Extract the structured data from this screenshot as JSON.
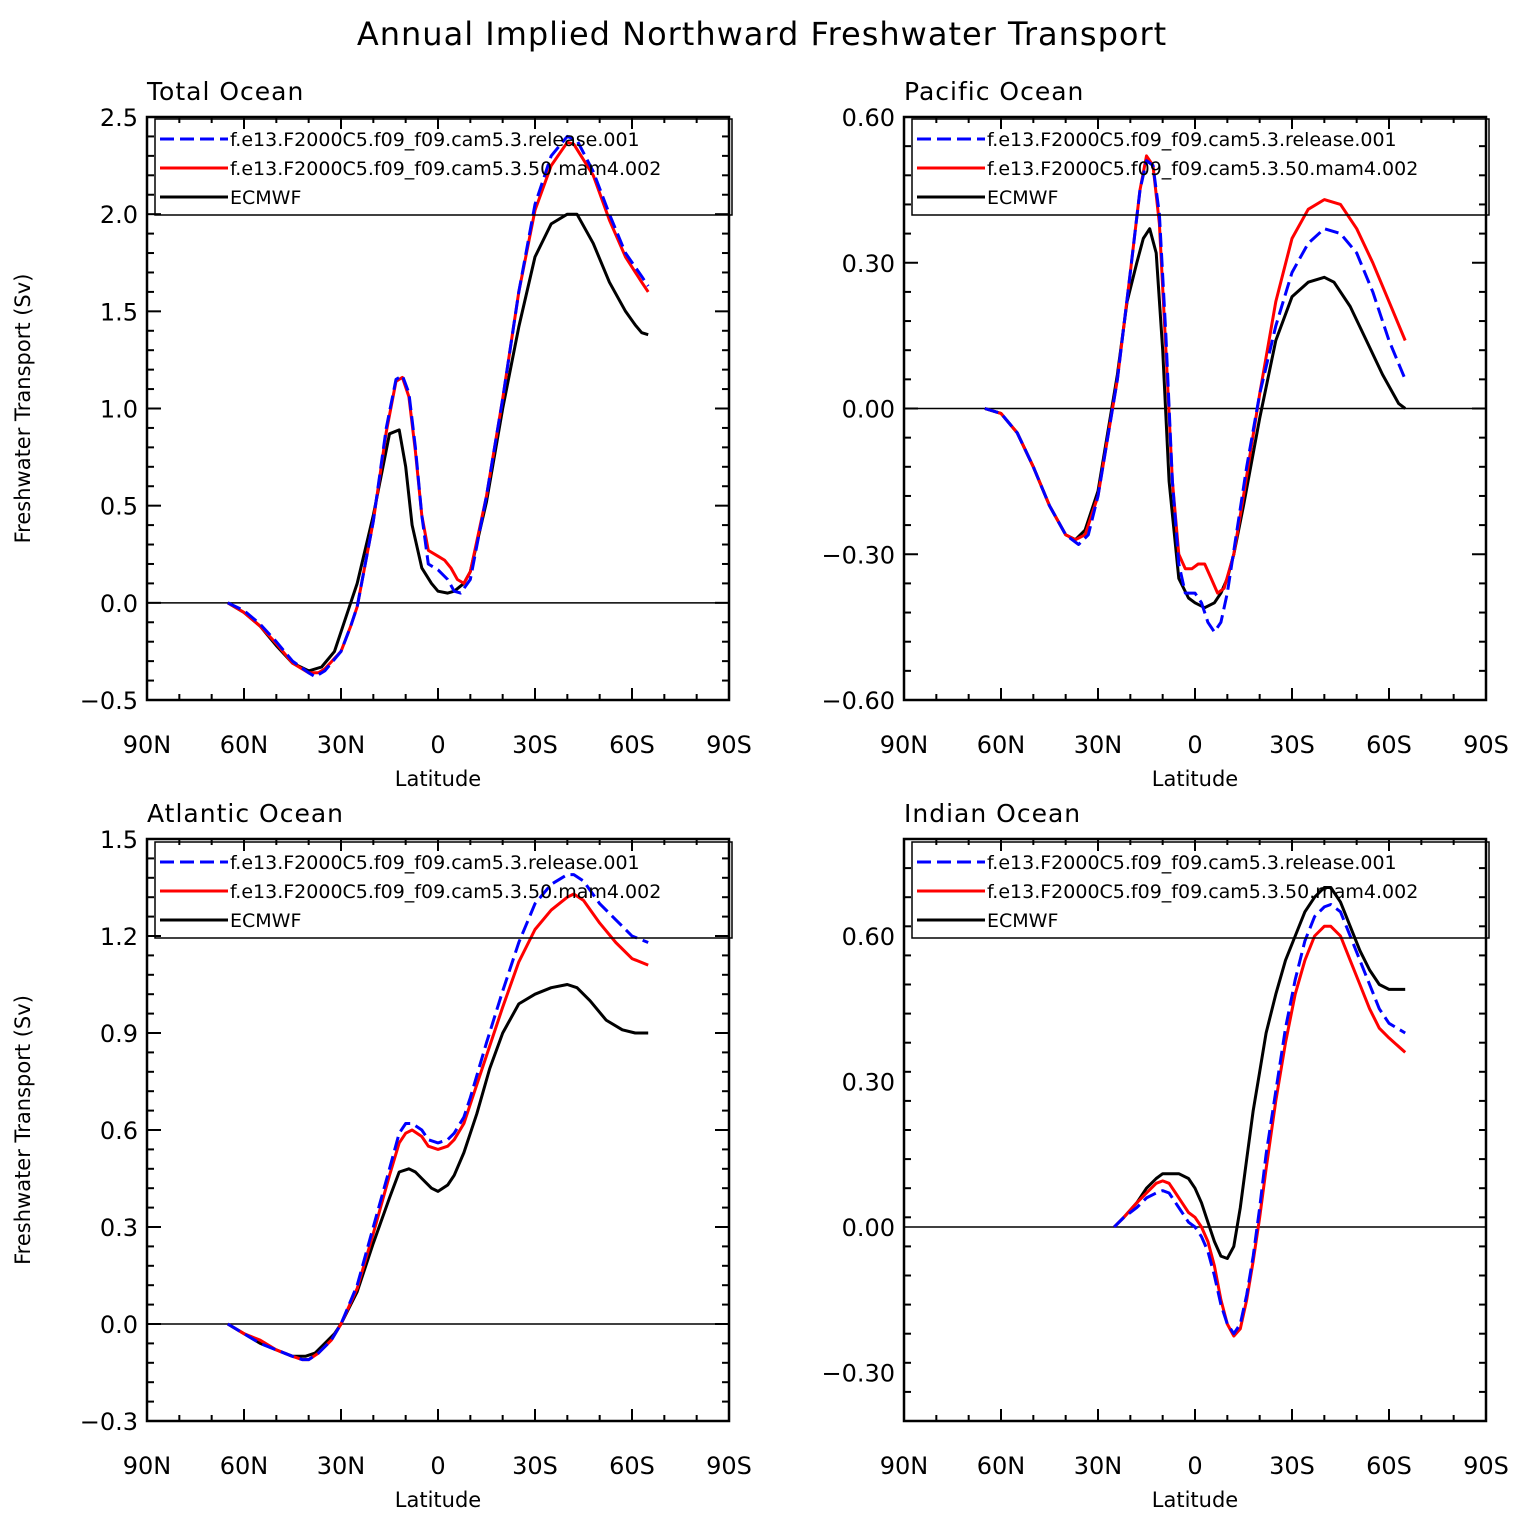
{
  "title": "Annual Implied Northward Freshwater Transport",
  "series_styles": [
    {
      "name": "f.e13.F2000C5.f09_f09.cam5.3.release.001",
      "color": "#0000ff",
      "dash": "dashed"
    },
    {
      "name": "f.e13.F2000C5.f09_f09.cam5.3.50.mam4.002",
      "color": "#ff0000",
      "dash": "solid"
    },
    {
      "name": "ECMWF",
      "color": "#000000",
      "dash": "solid"
    }
  ],
  "chart_data": [
    {
      "type": "line",
      "title": "Total Ocean",
      "xlabel": "Latitude",
      "ylabel": "Freshwater Transport (Sv)",
      "xlim": [
        -90,
        90
      ],
      "ylim": [
        -0.5,
        2.5
      ],
      "x_ticks": [
        -90,
        -60,
        -30,
        0,
        30,
        60,
        90
      ],
      "x_tick_labels": [
        "90N",
        "60N",
        "30N",
        "0",
        "30S",
        "60S",
        "90S"
      ],
      "y_ticks": [
        -0.5,
        0.0,
        0.5,
        1.0,
        1.5,
        2.0,
        2.5
      ],
      "y_tick_labels": [
        "−0.5",
        "0.0",
        "0.5",
        "1.0",
        "1.5",
        "2.0",
        "2.5"
      ],
      "legend": "top",
      "series": [
        {
          "name": "f.e13.F2000C5.f09_f09.cam5.3.release.001",
          "x": [
            -65,
            -60,
            -55,
            -50,
            -45,
            -40,
            -38,
            -35,
            -30,
            -27,
            -25,
            -20,
            -16,
            -13,
            -11,
            -9,
            -7,
            -5,
            -3,
            0,
            3,
            5,
            7,
            10,
            15,
            20,
            25,
            30,
            35,
            40,
            43,
            48,
            53,
            58,
            63,
            65
          ],
          "y": [
            0.0,
            -0.04,
            -0.11,
            -0.2,
            -0.3,
            -0.36,
            -0.38,
            -0.35,
            -0.25,
            -0.12,
            -0.02,
            0.42,
            0.9,
            1.15,
            1.17,
            1.08,
            0.8,
            0.45,
            0.2,
            0.17,
            0.12,
            0.06,
            0.05,
            0.12,
            0.55,
            1.05,
            1.6,
            2.05,
            2.3,
            2.4,
            2.38,
            2.22,
            2.0,
            1.8,
            1.68,
            1.63
          ]
        },
        {
          "name": "f.e13.F2000C5.f09_f09.cam5.3.50.mam4.002",
          "x": [
            -65,
            -60,
            -55,
            -50,
            -45,
            -40,
            -37,
            -35,
            -30,
            -27,
            -25,
            -20,
            -16,
            -13,
            -11,
            -9,
            -7,
            -5,
            -3,
            0,
            2,
            4,
            6,
            8,
            10,
            15,
            20,
            25,
            30,
            35,
            40,
            42,
            48,
            53,
            58,
            63,
            65
          ],
          "y": [
            0.0,
            -0.05,
            -0.12,
            -0.21,
            -0.31,
            -0.36,
            -0.36,
            -0.34,
            -0.25,
            -0.12,
            -0.02,
            0.42,
            0.88,
            1.14,
            1.16,
            1.06,
            0.78,
            0.45,
            0.27,
            0.24,
            0.22,
            0.18,
            0.12,
            0.1,
            0.16,
            0.55,
            1.05,
            1.6,
            2.02,
            2.25,
            2.37,
            2.36,
            2.2,
            1.97,
            1.78,
            1.65,
            1.6
          ]
        },
        {
          "name": "ECMWF",
          "x": [
            -65,
            -60,
            -55,
            -50,
            -45,
            -40,
            -36,
            -32,
            -29,
            -25,
            -20,
            -15,
            -12,
            -10,
            -8,
            -5,
            -2,
            0,
            3,
            5,
            8,
            10,
            15,
            20,
            25,
            30,
            35,
            40,
            43,
            48,
            53,
            58,
            61,
            63,
            65
          ],
          "y": [
            0.0,
            -0.05,
            -0.12,
            -0.22,
            -0.31,
            -0.35,
            -0.33,
            -0.25,
            -0.1,
            0.1,
            0.45,
            0.87,
            0.89,
            0.7,
            0.4,
            0.18,
            0.1,
            0.06,
            0.05,
            0.06,
            0.1,
            0.16,
            0.52,
            1.0,
            1.42,
            1.78,
            1.95,
            2.0,
            2.0,
            1.85,
            1.65,
            1.5,
            1.43,
            1.39,
            1.38
          ]
        }
      ]
    },
    {
      "type": "line",
      "title": "Pacific Ocean",
      "xlabel": "Latitude",
      "ylabel": "",
      "xlim": [
        -90,
        90
      ],
      "ylim": [
        -0.6,
        0.6
      ],
      "x_ticks": [
        -90,
        -60,
        -30,
        0,
        30,
        60,
        90
      ],
      "x_tick_labels": [
        "90N",
        "60N",
        "30N",
        "0",
        "30S",
        "60S",
        "90S"
      ],
      "y_ticks": [
        -0.6,
        -0.3,
        0.0,
        0.3,
        0.6
      ],
      "y_tick_labels": [
        "−0.60",
        "−0.30",
        "0.00",
        "0.30",
        "0.60"
      ],
      "legend": "top",
      "series": [
        {
          "name": "f.e13.F2000C5.f09_f09.cam5.3.release.001",
          "x": [
            -65,
            -60,
            -55,
            -50,
            -45,
            -40,
            -36,
            -33,
            -30,
            -27,
            -24,
            -20,
            -17,
            -15,
            -13,
            -11,
            -9,
            -7,
            -5,
            -3,
            0,
            2,
            4,
            6,
            8,
            10,
            13,
            16,
            20,
            25,
            30,
            35,
            40,
            45,
            50,
            55,
            60,
            65
          ],
          "y": [
            0.0,
            -0.01,
            -0.05,
            -0.12,
            -0.2,
            -0.26,
            -0.28,
            -0.26,
            -0.18,
            -0.06,
            0.06,
            0.28,
            0.45,
            0.51,
            0.5,
            0.4,
            0.15,
            -0.15,
            -0.32,
            -0.38,
            -0.38,
            -0.4,
            -0.44,
            -0.46,
            -0.44,
            -0.38,
            -0.25,
            -0.12,
            0.03,
            0.17,
            0.28,
            0.34,
            0.37,
            0.36,
            0.32,
            0.24,
            0.14,
            0.06
          ]
        },
        {
          "name": "f.e13.F2000C5.f09_f09.cam5.3.50.mam4.002",
          "x": [
            -65,
            -60,
            -55,
            -50,
            -45,
            -40,
            -37,
            -34,
            -30,
            -27,
            -24,
            -20,
            -17,
            -15,
            -13,
            -11,
            -9,
            -7,
            -5,
            -3,
            -1,
            1,
            3,
            5,
            7,
            9,
            12,
            15,
            20,
            25,
            30,
            35,
            40,
            45,
            50,
            55,
            60,
            65
          ],
          "y": [
            0.0,
            -0.01,
            -0.05,
            -0.12,
            -0.2,
            -0.26,
            -0.27,
            -0.26,
            -0.18,
            -0.06,
            0.06,
            0.28,
            0.45,
            0.52,
            0.5,
            0.38,
            0.12,
            -0.15,
            -0.3,
            -0.33,
            -0.33,
            -0.32,
            -0.32,
            -0.35,
            -0.38,
            -0.37,
            -0.3,
            -0.18,
            0.03,
            0.22,
            0.35,
            0.41,
            0.43,
            0.42,
            0.37,
            0.3,
            0.22,
            0.14
          ]
        },
        {
          "name": "ECMWF",
          "x": [
            -65,
            -60,
            -55,
            -50,
            -45,
            -40,
            -37,
            -34,
            -30,
            -27,
            -24,
            -21,
            -18,
            -16,
            -14,
            -12,
            -10,
            -8,
            -5,
            -2,
            0,
            3,
            6,
            8,
            10,
            12,
            15,
            20,
            25,
            30,
            35,
            40,
            43,
            48,
            53,
            58,
            63,
            65
          ],
          "y": [
            0.0,
            -0.01,
            -0.05,
            -0.12,
            -0.2,
            -0.26,
            -0.27,
            -0.25,
            -0.17,
            -0.05,
            0.07,
            0.22,
            0.3,
            0.35,
            0.37,
            0.32,
            0.12,
            -0.15,
            -0.35,
            -0.39,
            -0.4,
            -0.41,
            -0.4,
            -0.38,
            -0.35,
            -0.3,
            -0.2,
            -0.02,
            0.14,
            0.23,
            0.26,
            0.27,
            0.26,
            0.21,
            0.14,
            0.07,
            0.01,
            0.0
          ]
        }
      ]
    },
    {
      "type": "line",
      "title": "Atlantic Ocean",
      "xlabel": "Latitude",
      "ylabel": "Freshwater Transport (Sv)",
      "xlim": [
        -90,
        90
      ],
      "ylim": [
        -0.3,
        1.5
      ],
      "x_ticks": [
        -90,
        -60,
        -30,
        0,
        30,
        60,
        90
      ],
      "x_tick_labels": [
        "90N",
        "60N",
        "30N",
        "0",
        "30S",
        "60S",
        "90S"
      ],
      "y_ticks": [
        -0.3,
        0.0,
        0.3,
        0.6,
        0.9,
        1.2,
        1.5
      ],
      "y_tick_labels": [
        "−0.3",
        "0.0",
        "0.3",
        "0.6",
        "0.9",
        "1.2",
        "1.5"
      ],
      "legend": "top",
      "series": [
        {
          "name": "f.e13.F2000C5.f09_f09.cam5.3.release.001",
          "x": [
            -65,
            -60,
            -55,
            -50,
            -45,
            -42,
            -40,
            -37,
            -33,
            -30,
            -25,
            -20,
            -15,
            -12,
            -10,
            -8,
            -5,
            -3,
            0,
            3,
            5,
            8,
            10,
            15,
            20,
            25,
            30,
            35,
            40,
            42,
            45,
            50,
            55,
            60,
            65
          ],
          "y": [
            0.0,
            -0.03,
            -0.06,
            -0.08,
            -0.1,
            -0.11,
            -0.11,
            -0.09,
            -0.05,
            0.0,
            0.12,
            0.3,
            0.48,
            0.59,
            0.62,
            0.62,
            0.6,
            0.57,
            0.56,
            0.57,
            0.59,
            0.64,
            0.7,
            0.87,
            1.03,
            1.18,
            1.3,
            1.36,
            1.39,
            1.39,
            1.37,
            1.3,
            1.25,
            1.2,
            1.18
          ]
        },
        {
          "name": "f.e13.F2000C5.f09_f09.cam5.3.50.mam4.002",
          "x": [
            -65,
            -60,
            -55,
            -50,
            -45,
            -42,
            -40,
            -37,
            -33,
            -30,
            -25,
            -20,
            -15,
            -12,
            -10,
            -8,
            -5,
            -3,
            0,
            3,
            5,
            8,
            10,
            15,
            20,
            25,
            30,
            35,
            40,
            42,
            45,
            50,
            55,
            60,
            65
          ],
          "y": [
            0.0,
            -0.03,
            -0.05,
            -0.08,
            -0.1,
            -0.11,
            -0.11,
            -0.09,
            -0.05,
            0.0,
            0.11,
            0.28,
            0.46,
            0.56,
            0.59,
            0.6,
            0.58,
            0.55,
            0.54,
            0.55,
            0.57,
            0.62,
            0.68,
            0.83,
            0.98,
            1.12,
            1.22,
            1.28,
            1.32,
            1.33,
            1.31,
            1.24,
            1.18,
            1.13,
            1.11
          ]
        },
        {
          "name": "ECMWF",
          "x": [
            -65,
            -60,
            -55,
            -50,
            -45,
            -41,
            -38,
            -35,
            -32,
            -30,
            -25,
            -20,
            -15,
            -12,
            -9,
            -7,
            -5,
            -2,
            0,
            3,
            5,
            8,
            12,
            16,
            20,
            25,
            30,
            35,
            40,
            43,
            47,
            52,
            57,
            61,
            65
          ],
          "y": [
            0.0,
            -0.03,
            -0.06,
            -0.08,
            -0.1,
            -0.1,
            -0.09,
            -0.06,
            -0.03,
            0.0,
            0.1,
            0.25,
            0.39,
            0.47,
            0.48,
            0.47,
            0.45,
            0.42,
            0.41,
            0.43,
            0.46,
            0.53,
            0.65,
            0.79,
            0.9,
            0.99,
            1.02,
            1.04,
            1.05,
            1.04,
            1.0,
            0.94,
            0.91,
            0.9,
            0.9
          ]
        }
      ]
    },
    {
      "type": "line",
      "title": "Indian Ocean",
      "xlabel": "Latitude",
      "ylabel": "",
      "xlim": [
        -90,
        90
      ],
      "ylim": [
        -0.4,
        0.8
      ],
      "x_ticks": [
        -90,
        -60,
        -30,
        0,
        30,
        60,
        90
      ],
      "x_tick_labels": [
        "90N",
        "60N",
        "30N",
        "0",
        "30S",
        "60S",
        "90S"
      ],
      "y_ticks": [
        -0.3,
        0.0,
        0.3,
        0.6
      ],
      "y_tick_labels": [
        "−0.30",
        "0.00",
        "0.30",
        "0.60"
      ],
      "legend": "top",
      "series": [
        {
          "name": "f.e13.F2000C5.f09_f09.cam5.3.release.001",
          "x": [
            -25,
            -22,
            -18,
            -15,
            -12,
            -10,
            -8,
            -6,
            -4,
            -2,
            0,
            2,
            4,
            6,
            8,
            10,
            12,
            14,
            16,
            18,
            20,
            22,
            25,
            28,
            31,
            34,
            37,
            40,
            42,
            45,
            48,
            51,
            54,
            57,
            60,
            65
          ],
          "y": [
            0.0,
            0.02,
            0.04,
            0.06,
            0.07,
            0.075,
            0.07,
            0.05,
            0.03,
            0.01,
            0.0,
            -0.02,
            -0.05,
            -0.1,
            -0.16,
            -0.2,
            -0.22,
            -0.2,
            -0.14,
            -0.06,
            0.04,
            0.15,
            0.28,
            0.41,
            0.51,
            0.59,
            0.64,
            0.66,
            0.665,
            0.65,
            0.6,
            0.55,
            0.5,
            0.45,
            0.42,
            0.4
          ]
        },
        {
          "name": "f.e13.F2000C5.f09_f09.cam5.3.50.mam4.002",
          "x": [
            -25,
            -22,
            -18,
            -15,
            -12,
            -10,
            -8,
            -6,
            -4,
            -2,
            0,
            2,
            4,
            6,
            8,
            10,
            12,
            14,
            16,
            18,
            20,
            22,
            25,
            28,
            31,
            34,
            37,
            40,
            42,
            45,
            48,
            51,
            54,
            57,
            60,
            65
          ],
          "y": [
            0.0,
            0.02,
            0.05,
            0.07,
            0.09,
            0.095,
            0.09,
            0.07,
            0.05,
            0.03,
            0.02,
            0.0,
            -0.03,
            -0.08,
            -0.15,
            -0.2,
            -0.225,
            -0.21,
            -0.15,
            -0.07,
            0.02,
            0.12,
            0.26,
            0.38,
            0.48,
            0.55,
            0.6,
            0.62,
            0.62,
            0.6,
            0.55,
            0.5,
            0.45,
            0.41,
            0.39,
            0.36
          ]
        },
        {
          "name": "ECMWF",
          "x": [
            -25,
            -22,
            -18,
            -15,
            -12,
            -10,
            -8,
            -5,
            -2,
            0,
            2,
            4,
            6,
            8,
            10,
            12,
            14,
            16,
            18,
            20,
            22,
            25,
            28,
            31,
            34,
            37,
            40,
            42,
            45,
            48,
            51,
            54,
            57,
            60,
            63,
            65
          ],
          "y": [
            0.0,
            0.02,
            0.05,
            0.08,
            0.1,
            0.11,
            0.11,
            0.11,
            0.1,
            0.08,
            0.05,
            0.01,
            -0.03,
            -0.06,
            -0.065,
            -0.04,
            0.04,
            0.14,
            0.24,
            0.32,
            0.4,
            0.48,
            0.55,
            0.6,
            0.65,
            0.68,
            0.7,
            0.7,
            0.67,
            0.62,
            0.57,
            0.53,
            0.5,
            0.49,
            0.49,
            0.49
          ]
        }
      ]
    }
  ]
}
